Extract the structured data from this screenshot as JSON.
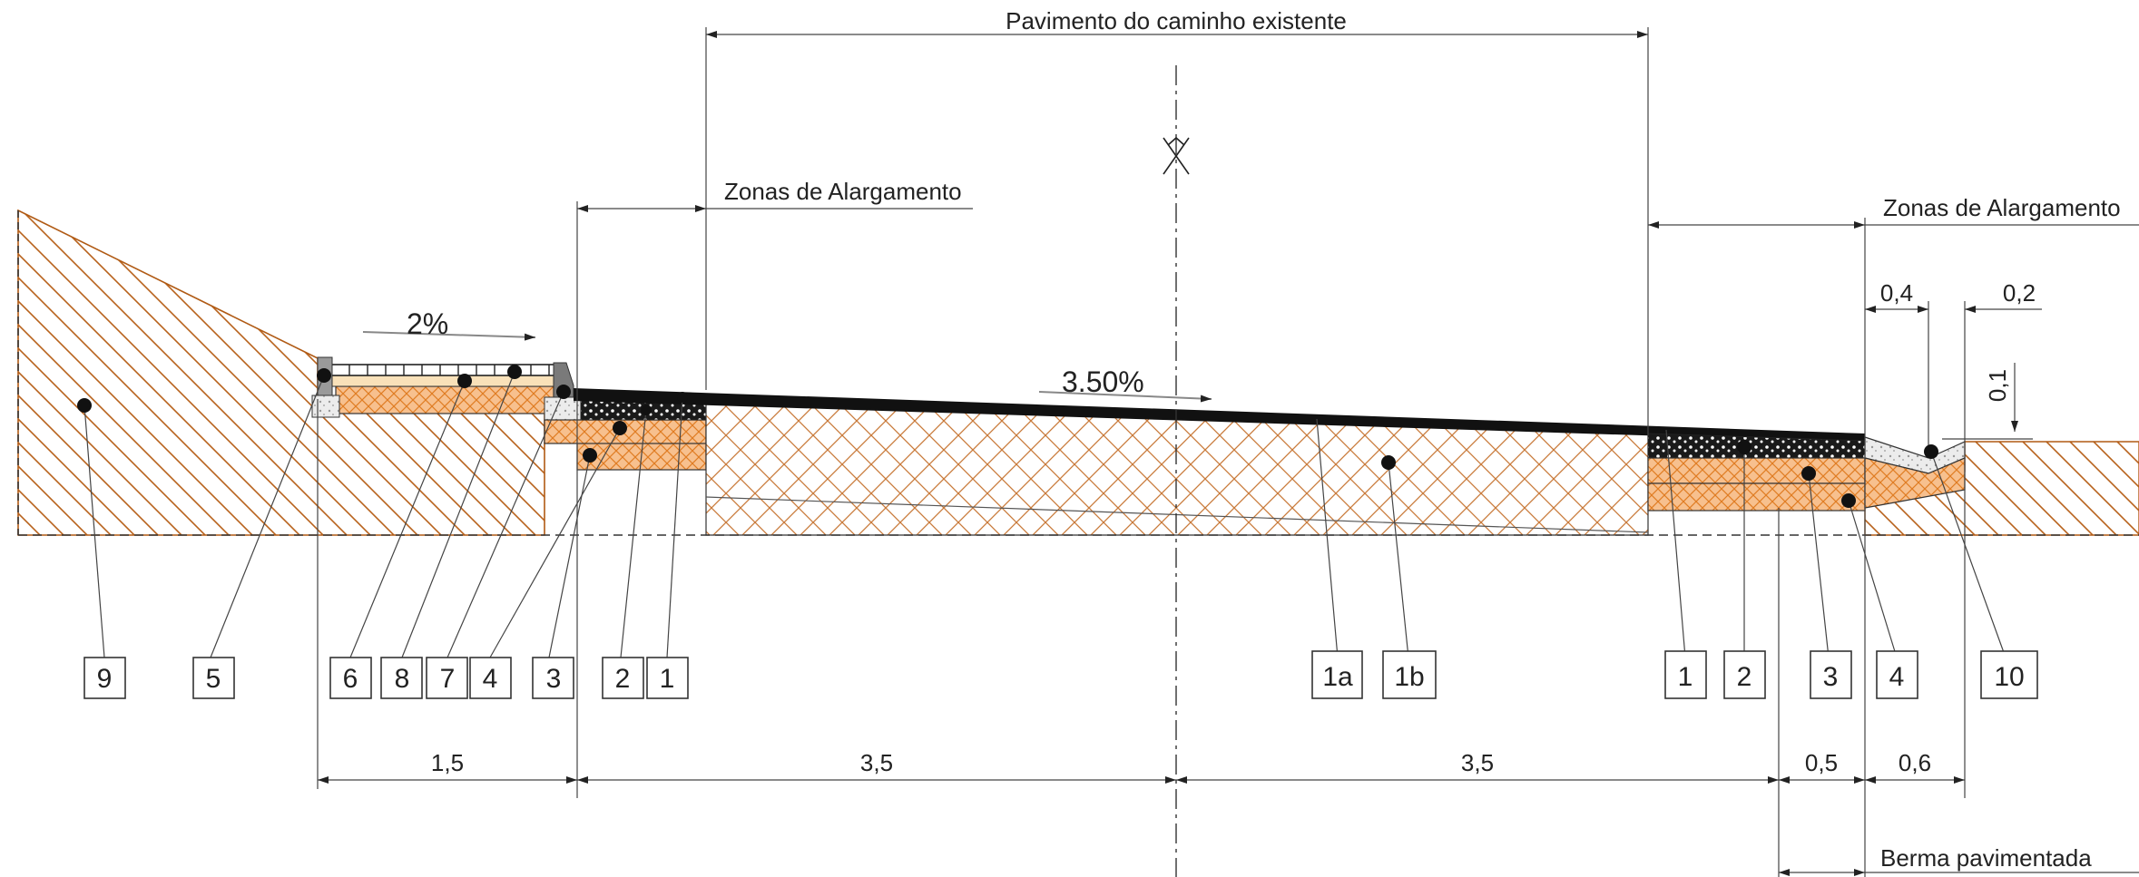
{
  "labels": {
    "existing_pavement": "Pavimento do caminho existente",
    "widening_left": "Zonas de Alargamento",
    "widening_right": "Zonas de Alargamento",
    "paved_shoulder": "Berma pavimentada",
    "slope_sidewalk": "2%",
    "slope_road": "3.50%"
  },
  "dimensions": {
    "d_sidewalk": "1,5",
    "d_lane_left": "3,5",
    "d_lane_right": "3,5",
    "d_shoulder": "0,5",
    "d_ditch": "0,6",
    "d_top_04": "0,4",
    "d_top_02": "0,2",
    "d_vert_01": "0,1"
  },
  "refs": [
    "9",
    "5",
    "6",
    "8",
    "7",
    "4",
    "3",
    "2",
    "1",
    "1a",
    "1b",
    "1",
    "2",
    "3",
    "4",
    "10"
  ],
  "colors": {
    "soil": "#b05a14",
    "base_orange": "#f2a86a",
    "asphalt": "#111111",
    "subbase_hatch": "#c97a3a"
  }
}
